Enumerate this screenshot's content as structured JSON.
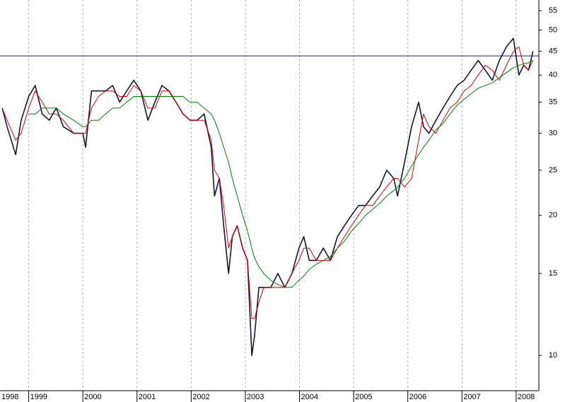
{
  "chart_data": {
    "type": "line",
    "log_scale": true,
    "grid": true,
    "xlim": [
      1998.47,
      2008.42
    ],
    "xticks": [
      1998,
      1999,
      2000,
      2001,
      2002,
      2003,
      2004,
      2005,
      2006,
      2007,
      2008
    ],
    "ylim": [
      8.4,
      58
    ],
    "yticks": [
      10,
      15,
      20,
      25,
      30,
      35,
      40,
      45,
      50,
      55
    ],
    "hline": 44,
    "hline_color": "#1a1aa0",
    "x": [
      1998.51,
      1998.6,
      1998.76,
      1998.86,
      1999.0,
      1999.12,
      1999.25,
      1999.38,
      1999.51,
      1999.64,
      1999.83,
      2000.0,
      2000.05,
      2000.16,
      2000.29,
      2000.42,
      2000.55,
      2000.68,
      2000.81,
      2000.94,
      2001.07,
      2001.2,
      2001.33,
      2001.46,
      2001.59,
      2001.72,
      2001.85,
      2001.98,
      2002.11,
      2002.24,
      2002.37,
      2002.43,
      2002.52,
      2002.6,
      2002.69,
      2002.76,
      2002.85,
      2002.95,
      2003.04,
      2003.12,
      2003.17,
      2003.25,
      2003.34,
      2003.47,
      2003.6,
      2003.73,
      2003.86,
      2003.99,
      2004.08,
      2004.18,
      2004.31,
      2004.44,
      2004.57,
      2004.7,
      2004.83,
      2004.96,
      2005.09,
      2005.22,
      2005.35,
      2005.48,
      2005.61,
      2005.74,
      2005.81,
      2005.94,
      2006.07,
      2006.2,
      2006.29,
      2006.39,
      2006.52,
      2006.65,
      2006.78,
      2006.91,
      2007.04,
      2007.17,
      2007.3,
      2007.43,
      2007.56,
      2007.69,
      2007.82,
      2007.95,
      2008.05,
      2008.14,
      2008.23,
      2008.31
    ],
    "series": [
      {
        "color": "#14143c",
        "values": [
          34,
          31,
          27,
          32,
          36,
          38,
          33,
          32,
          34,
          31,
          30,
          30,
          28,
          37,
          37,
          37,
          38,
          35,
          37,
          39,
          37,
          32,
          35,
          38,
          37,
          35,
          33,
          32,
          32,
          33,
          28,
          22,
          24,
          19,
          15,
          18,
          19,
          17,
          16,
          10,
          11,
          14,
          14,
          14,
          15,
          14,
          15,
          17,
          18,
          16,
          16,
          17,
          16,
          18,
          19,
          20,
          21,
          21,
          22,
          23,
          25,
          24,
          22,
          26,
          31,
          35,
          31,
          30,
          32,
          34,
          36,
          38,
          39,
          41,
          43,
          41,
          39,
          43,
          46,
          48,
          40,
          42,
          41,
          45
        ]
      },
      {
        "color": "#e00000",
        "values": [
          34,
          32,
          29,
          30,
          34,
          37,
          35,
          33,
          33,
          32,
          30,
          30,
          30,
          34,
          36,
          37,
          37,
          36,
          36,
          38,
          37,
          34,
          34,
          37,
          37,
          35,
          33,
          32,
          32,
          32,
          29,
          25,
          24,
          21,
          17,
          18,
          19,
          17,
          16,
          12,
          12,
          13,
          14,
          14,
          14,
          14,
          15,
          16,
          17,
          17,
          16,
          16,
          16,
          17,
          18,
          19,
          20,
          21,
          21,
          22,
          23,
          24,
          24,
          23,
          24,
          29,
          33,
          31,
          30,
          32,
          34,
          35,
          37,
          38,
          40,
          42,
          41,
          39,
          42,
          45,
          46,
          42,
          41,
          43
        ]
      },
      {
        "color": "#008000",
        "values": [
          null,
          null,
          null,
          null,
          33,
          33,
          34,
          34,
          34,
          33,
          32,
          31,
          31,
          32,
          32,
          33,
          34,
          34,
          35,
          36,
          36,
          36,
          36,
          36,
          36,
          36,
          36,
          35,
          35,
          34,
          33,
          32,
          30,
          28,
          26,
          24,
          22,
          20,
          18.5,
          17,
          16.2,
          15.5,
          15,
          14.5,
          14.2,
          14,
          14,
          14.5,
          14.8,
          15.3,
          15.7,
          16,
          16.3,
          17,
          17.6,
          18.5,
          19.2,
          20,
          20.6,
          21.2,
          22,
          22.6,
          23,
          24,
          25.5,
          27,
          28,
          29,
          30.5,
          31.5,
          33,
          34.5,
          35.5,
          36.5,
          37.5,
          38,
          38.5,
          39.5,
          40.5,
          41.5,
          42,
          42.3,
          42.5,
          43
        ]
      }
    ]
  }
}
